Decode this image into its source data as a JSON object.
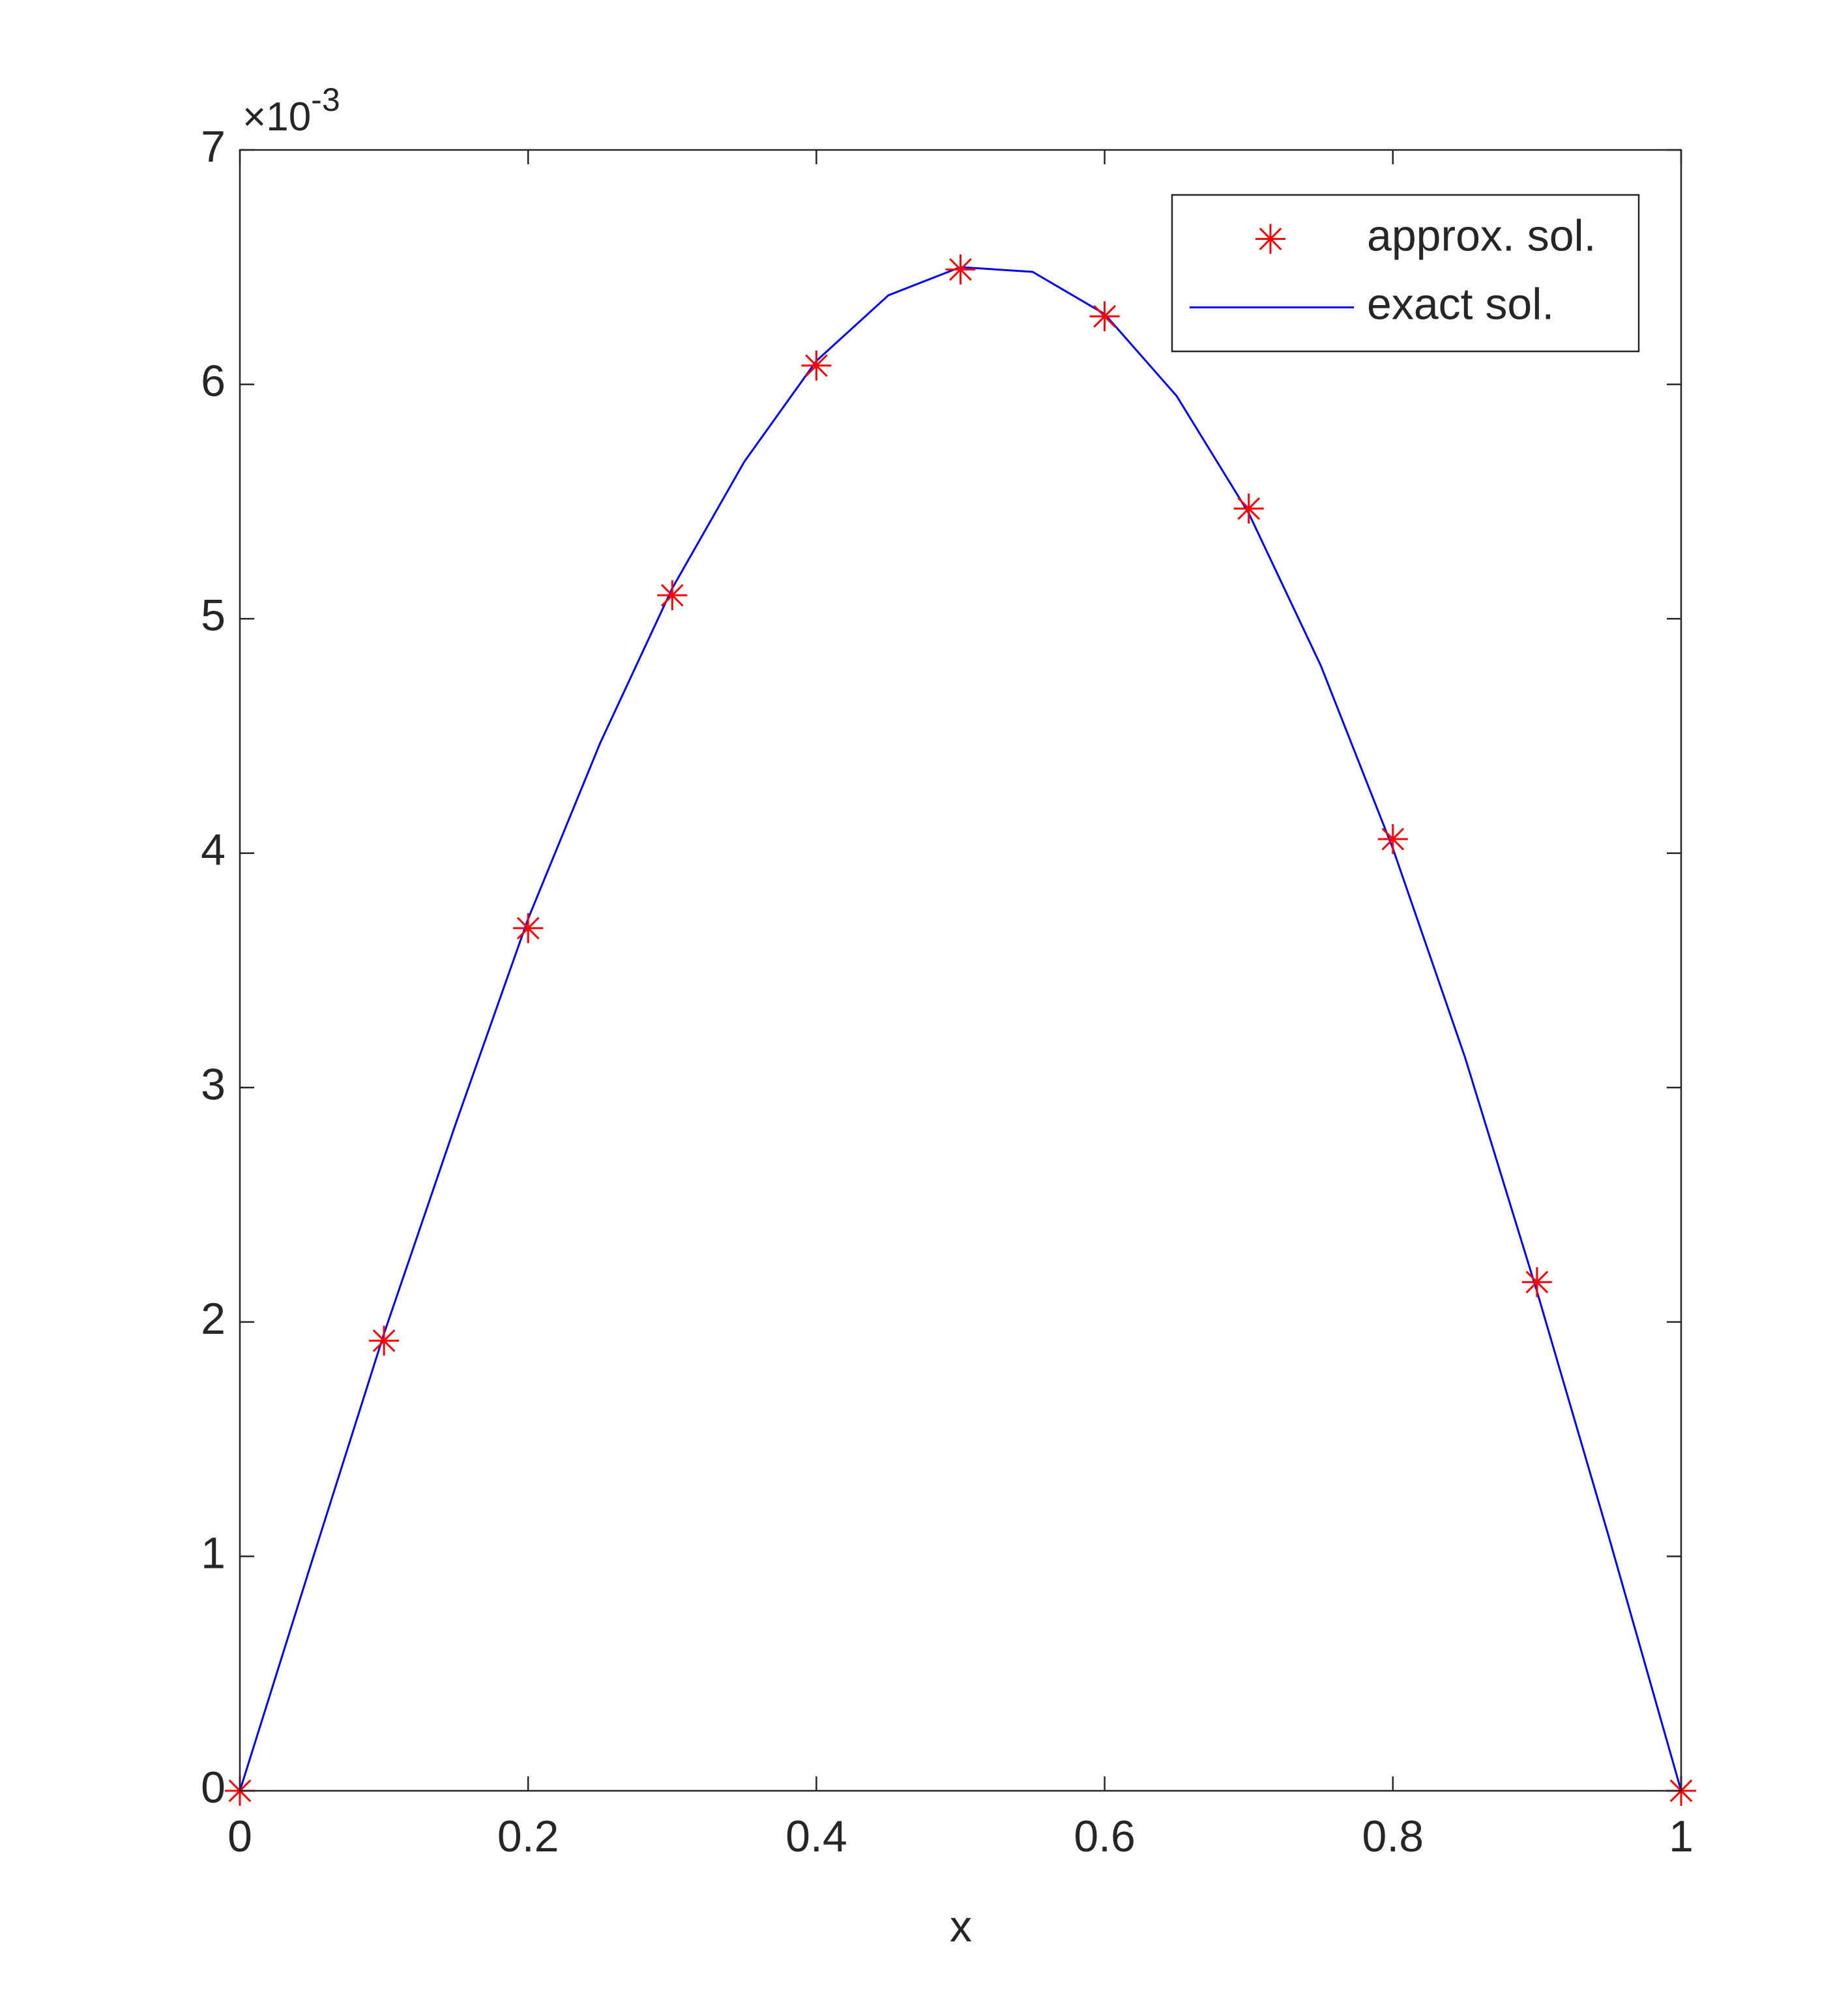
{
  "chart_data": {
    "type": "line",
    "xlabel": "x",
    "y_exponent": {
      "base": "×10",
      "power": "-3"
    },
    "xlim": [
      0,
      1
    ],
    "xticks": [
      0,
      0.2,
      0.4,
      0.6,
      0.8,
      1
    ],
    "ylim": [
      0,
      7
    ],
    "yticks": [
      0,
      1,
      2,
      3,
      4,
      5,
      6,
      7
    ],
    "grid": false,
    "legend_position": "northeast",
    "series": [
      {
        "name": "approx. sol.",
        "color": "#ff0000",
        "marker": "asterisk",
        "x": [
          0,
          0.1,
          0.2,
          0.3,
          0.4,
          0.5,
          0.6,
          0.7,
          0.8,
          0.9,
          1
        ],
        "values": [
          0,
          1.92,
          3.68,
          5.1,
          6.08,
          6.49,
          6.29,
          5.47,
          4.06,
          2.17,
          0
        ]
      },
      {
        "name": "exact sol.",
        "color": "#0000ff",
        "marker": "none",
        "x": [
          0,
          0.05,
          0.1,
          0.15,
          0.2,
          0.25,
          0.3,
          0.35,
          0.4,
          0.45,
          0.5,
          0.55,
          0.6,
          0.65,
          0.7,
          0.75,
          0.8,
          0.85,
          0.9,
          0.95,
          1
        ],
        "values": [
          0,
          0.98,
          1.95,
          2.85,
          3.72,
          4.47,
          5.13,
          5.67,
          6.1,
          6.38,
          6.5,
          6.48,
          6.3,
          5.95,
          5.45,
          4.8,
          4.02,
          3.13,
          2.13,
          1.08,
          0
        ]
      }
    ]
  }
}
